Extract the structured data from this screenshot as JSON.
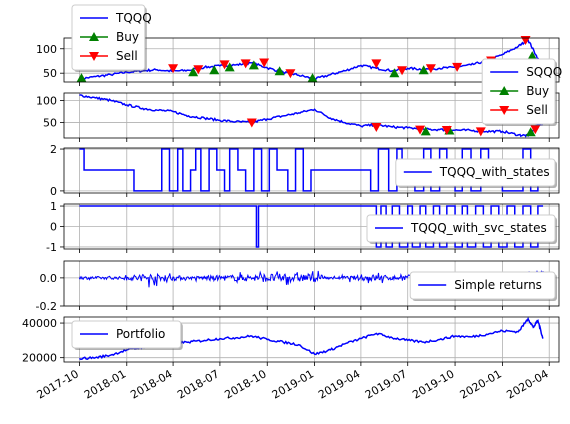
{
  "chart_data": [
    {
      "type": "line",
      "ylim": [
        32,
        122
      ],
      "yticks": [
        "50",
        "100"
      ],
      "ytick_values": [
        50,
        100
      ],
      "legend": {
        "placement": "top-left-outside",
        "entries": [
          "TQQQ",
          "Buy",
          "Sell"
        ]
      },
      "series": [
        {
          "name": "TQQQ",
          "kind": "line",
          "color": "#0000ff",
          "x": [
            "2017-10-01",
            "2017-11-01",
            "2017-12-01",
            "2018-01-01",
            "2018-02-01",
            "2018-03-01",
            "2018-04-01",
            "2018-05-01",
            "2018-06-01",
            "2018-07-01",
            "2018-08-01",
            "2018-09-01",
            "2018-10-01",
            "2018-11-01",
            "2018-12-01",
            "2019-01-01",
            "2019-02-01",
            "2019-03-01",
            "2019-04-01",
            "2019-05-01",
            "2019-06-01",
            "2019-07-01",
            "2019-08-01",
            "2019-09-01",
            "2019-10-01",
            "2019-11-01",
            "2019-12-01",
            "2020-01-01",
            "2020-02-01",
            "2020-02-20",
            "2020-03-10",
            "2020-03-20"
          ],
          "y": [
            38,
            43,
            47,
            52,
            55,
            57,
            54,
            56,
            62,
            65,
            67,
            71,
            61,
            52,
            46,
            38,
            47,
            55,
            66,
            60,
            55,
            60,
            58,
            60,
            62,
            67,
            75,
            88,
            105,
            118,
            80,
            62
          ]
        },
        {
          "name": "Buy",
          "kind": "marker-up",
          "color": "#008000",
          "x": [
            "2017-10-05",
            "2018-05-10",
            "2018-06-20",
            "2018-07-20",
            "2018-09-05",
            "2018-10-25",
            "2018-12-28",
            "2019-06-05",
            "2019-08-01",
            "2020-02-28"
          ],
          "y": [
            40,
            52,
            56,
            62,
            66,
            54,
            40,
            50,
            56,
            85
          ]
        },
        {
          "name": "Sell",
          "kind": "marker-down",
          "color": "#ff0000",
          "x": [
            "2018-04-01",
            "2018-05-20",
            "2018-07-10",
            "2018-08-20",
            "2018-09-25",
            "2018-11-15",
            "2019-05-01",
            "2019-06-20",
            "2019-08-15",
            "2019-10-05",
            "2019-12-10",
            "2020-02-15",
            "2020-03-15"
          ],
          "y": [
            60,
            58,
            68,
            70,
            72,
            50,
            70,
            56,
            60,
            63,
            76,
            118,
            65
          ]
        }
      ]
    },
    {
      "type": "line",
      "ylim": [
        15,
        117
      ],
      "yticks": [
        "50",
        "100"
      ],
      "ytick_values": [
        50,
        100
      ],
      "legend": {
        "placement": "top-right-outside",
        "entries": [
          "SQQQ",
          "Buy",
          "Sell"
        ]
      },
      "series": [
        {
          "name": "SQQQ",
          "kind": "line",
          "color": "#0000ff",
          "x": [
            "2017-10-01",
            "2017-11-01",
            "2017-12-01",
            "2018-01-01",
            "2018-02-01",
            "2018-03-01",
            "2018-04-01",
            "2018-05-01",
            "2018-06-01",
            "2018-07-01",
            "2018-08-01",
            "2018-09-01",
            "2018-10-01",
            "2018-11-01",
            "2018-12-01",
            "2019-01-01",
            "2019-02-01",
            "2019-03-01",
            "2019-04-01",
            "2019-05-01",
            "2019-06-01",
            "2019-07-01",
            "2019-08-01",
            "2019-09-01",
            "2019-10-01",
            "2019-11-01",
            "2019-12-01",
            "2020-01-01",
            "2020-02-01",
            "2020-02-20",
            "2020-03-10",
            "2020-03-20"
          ],
          "y": [
            112,
            106,
            100,
            90,
            82,
            78,
            75,
            65,
            60,
            55,
            52,
            50,
            58,
            65,
            72,
            80,
            60,
            50,
            42,
            45,
            40,
            38,
            35,
            34,
            33,
            32,
            30,
            30,
            22,
            20,
            45,
            50
          ]
        },
        {
          "name": "Buy",
          "kind": "marker-up",
          "color": "#008000",
          "x": [
            "2019-08-05",
            "2019-09-20",
            "2020-02-25"
          ],
          "y": [
            30,
            32,
            28
          ]
        },
        {
          "name": "Sell",
          "kind": "marker-down",
          "color": "#ff0000",
          "x": [
            "2018-09-01",
            "2019-05-01",
            "2019-07-25",
            "2019-09-15",
            "2019-11-20",
            "2020-03-05"
          ],
          "y": [
            50,
            40,
            34,
            33,
            30,
            35
          ]
        }
      ]
    },
    {
      "type": "line",
      "ylim": [
        -0.1,
        2.05
      ],
      "yticks": [
        "0",
        "2"
      ],
      "ytick_values": [
        0,
        2
      ],
      "legend": {
        "placement": "right",
        "entries": [
          "TQQQ_with_states"
        ]
      },
      "series": [
        {
          "name": "TQQQ_with_states",
          "kind": "step",
          "color": "#0000ff",
          "segments": [
            [
              "2017-10-01",
              2
            ],
            [
              "2017-10-10",
              1
            ],
            [
              "2018-01-15",
              0
            ],
            [
              "2018-03-10",
              2
            ],
            [
              "2018-03-25",
              0
            ],
            [
              "2018-04-10",
              2
            ],
            [
              "2018-04-20",
              0
            ],
            [
              "2018-05-05",
              1
            ],
            [
              "2018-05-15",
              2
            ],
            [
              "2018-05-25",
              0
            ],
            [
              "2018-06-10",
              2
            ],
            [
              "2018-06-25",
              1
            ],
            [
              "2018-07-10",
              0
            ],
            [
              "2018-07-20",
              2
            ],
            [
              "2018-08-05",
              1
            ],
            [
              "2018-08-20",
              0
            ],
            [
              "2018-09-05",
              2
            ],
            [
              "2018-09-20",
              0
            ],
            [
              "2018-10-05",
              2
            ],
            [
              "2018-10-20",
              1
            ],
            [
              "2018-11-10",
              0
            ],
            [
              "2018-11-25",
              2
            ],
            [
              "2018-12-10",
              0
            ],
            [
              "2018-12-25",
              1
            ],
            [
              "2019-04-20",
              0
            ],
            [
              "2019-05-05",
              2
            ],
            [
              "2019-05-25",
              0
            ],
            [
              "2019-06-10",
              2
            ],
            [
              "2019-06-20",
              1
            ],
            [
              "2019-07-15",
              0
            ],
            [
              "2019-08-01",
              2
            ],
            [
              "2019-08-15",
              0
            ],
            [
              "2019-09-01",
              2
            ],
            [
              "2019-09-15",
              1
            ],
            [
              "2019-10-01",
              0
            ],
            [
              "2019-10-15",
              2
            ],
            [
              "2019-11-01",
              0
            ],
            [
              "2019-11-20",
              2
            ],
            [
              "2019-12-05",
              1
            ],
            [
              "2020-01-01",
              0
            ],
            [
              "2020-02-10",
              2
            ],
            [
              "2020-02-25",
              0
            ],
            [
              "2020-03-10",
              1
            ],
            [
              "2020-03-20",
              1
            ]
          ]
        }
      ]
    },
    {
      "type": "line",
      "ylim": [
        -1.1,
        1.1
      ],
      "yticks": [
        "-1",
        "0",
        "1"
      ],
      "ytick_values": [
        -1,
        0,
        1
      ],
      "legend": {
        "placement": "right",
        "entries": [
          "TQQQ_with_svc_states"
        ]
      },
      "series": [
        {
          "name": "TQQQ_with_svc_states",
          "kind": "step",
          "color": "#0000ff",
          "segments": [
            [
              "2017-10-01",
              1
            ],
            [
              "2018-09-10",
              -1
            ],
            [
              "2018-09-14",
              1
            ],
            [
              "2019-05-01",
              -1
            ],
            [
              "2019-05-10",
              1
            ],
            [
              "2019-05-20",
              -1
            ],
            [
              "2019-06-01",
              1
            ],
            [
              "2019-06-15",
              -1
            ],
            [
              "2019-07-01",
              1
            ],
            [
              "2019-07-10",
              -1
            ],
            [
              "2019-07-25",
              1
            ],
            [
              "2019-08-05",
              -1
            ],
            [
              "2019-08-20",
              1
            ],
            [
              "2019-09-01",
              -1
            ],
            [
              "2019-09-15",
              1
            ],
            [
              "2019-10-01",
              -1
            ],
            [
              "2019-10-15",
              1
            ],
            [
              "2019-10-25",
              -1
            ],
            [
              "2019-11-10",
              1
            ],
            [
              "2019-11-25",
              -1
            ],
            [
              "2019-12-10",
              1
            ],
            [
              "2019-12-25",
              -1
            ],
            [
              "2020-01-10",
              1
            ],
            [
              "2020-01-25",
              -1
            ],
            [
              "2020-02-10",
              1
            ],
            [
              "2020-02-25",
              -1
            ],
            [
              "2020-03-10",
              1
            ],
            [
              "2020-03-20",
              1
            ]
          ]
        }
      ]
    },
    {
      "type": "line",
      "ylim": [
        -0.2,
        0.12
      ],
      "yticks": [
        "-0.2",
        "0.0"
      ],
      "ytick_values": [
        -0.2,
        0
      ],
      "legend": {
        "placement": "right",
        "entries": [
          "Simple returns"
        ]
      },
      "series": [
        {
          "name": "Simple returns",
          "kind": "noise",
          "color": "#0000ff",
          "x_start": "2017-10-01",
          "x_end": "2020-03-20",
          "amplitude_profile": [
            [
              "2017-10-01",
              0.02
            ],
            [
              "2018-01-01",
              0.02
            ],
            [
              "2018-02-01",
              0.07
            ],
            [
              "2018-03-15",
              0.05
            ],
            [
              "2018-05-01",
              0.02
            ],
            [
              "2018-10-01",
              0.06
            ],
            [
              "2019-01-01",
              0.06
            ],
            [
              "2019-02-01",
              0.01
            ],
            [
              "2019-05-01",
              0.05
            ],
            [
              "2019-06-01",
              0.03
            ],
            [
              "2019-08-01",
              0.06
            ],
            [
              "2019-10-01",
              0.03
            ],
            [
              "2020-01-01",
              0.02
            ],
            [
              "2020-02-20",
              0.12
            ],
            [
              "2020-03-20",
              0.12
            ]
          ]
        }
      ]
    },
    {
      "type": "line",
      "ylim": [
        17500,
        43500
      ],
      "yticks": [
        "20000",
        "40000"
      ],
      "ytick_values": [
        20000,
        40000
      ],
      "legend": {
        "placement": "top-left",
        "entries": [
          "Portfolio"
        ]
      },
      "series": [
        {
          "name": "Portfolio",
          "kind": "line",
          "color": "#0000ff",
          "x": [
            "2017-10-01",
            "2017-11-01",
            "2017-12-01",
            "2018-01-01",
            "2018-02-01",
            "2018-03-01",
            "2018-04-01",
            "2018-05-01",
            "2018-06-01",
            "2018-07-01",
            "2018-08-01",
            "2018-09-01",
            "2018-10-01",
            "2018-11-01",
            "2018-12-01",
            "2019-01-01",
            "2019-02-01",
            "2019-03-01",
            "2019-04-01",
            "2019-05-01",
            "2019-06-01",
            "2019-07-01",
            "2019-08-01",
            "2019-09-01",
            "2019-10-01",
            "2019-11-01",
            "2019-12-01",
            "2020-01-01",
            "2020-02-01",
            "2020-02-20",
            "2020-03-01",
            "2020-03-10",
            "2020-03-20"
          ],
          "y": [
            19500,
            20000,
            21500,
            24500,
            26000,
            27500,
            28500,
            29000,
            30000,
            31000,
            31500,
            32500,
            30500,
            29000,
            27500,
            22000,
            24500,
            28000,
            31000,
            34000,
            31500,
            30000,
            29000,
            30500,
            32500,
            32000,
            33500,
            35500,
            35000,
            42500,
            37500,
            41500,
            31000
          ]
        }
      ]
    }
  ],
  "x_axis": {
    "range": [
      "2017-09-01",
      "2020-04-20"
    ],
    "ticks": [
      {
        "date": "2017-10-01",
        "label": "2017-10"
      },
      {
        "date": "2018-01-01",
        "label": "2018-01"
      },
      {
        "date": "2018-04-01",
        "label": "2018-04"
      },
      {
        "date": "2018-07-01",
        "label": "2018-07"
      },
      {
        "date": "2018-10-01",
        "label": "2018-10"
      },
      {
        "date": "2019-01-01",
        "label": "2019-01"
      },
      {
        "date": "2019-04-01",
        "label": "2019-04"
      },
      {
        "date": "2019-07-01",
        "label": "2019-07"
      },
      {
        "date": "2019-10-01",
        "label": "2019-10"
      },
      {
        "date": "2020-01-01",
        "label": "2020-01"
      },
      {
        "date": "2020-04-01",
        "label": "2020-04"
      }
    ],
    "label_rotation": "30deg"
  },
  "grid": true
}
